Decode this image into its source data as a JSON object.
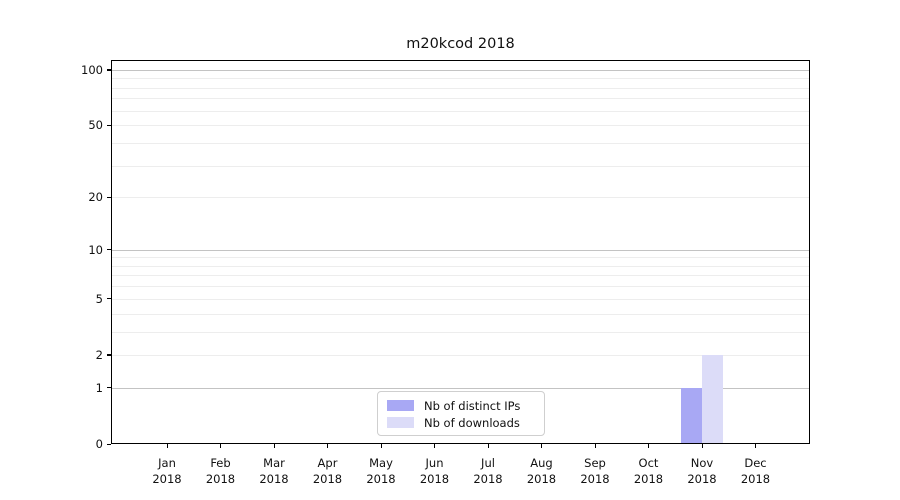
{
  "chart_data": {
    "type": "bar",
    "title": "m20kcod 2018",
    "categories": [
      "Jan",
      "Feb",
      "Mar",
      "Apr",
      "May",
      "Jun",
      "Jul",
      "Aug",
      "Sep",
      "Oct",
      "Nov",
      "Dec"
    ],
    "x_tick_year": "2018",
    "series": [
      {
        "name": "Nb of distinct IPs",
        "color": "#a8a8f4",
        "values": [
          0,
          0,
          0,
          0,
          0,
          0,
          0,
          0,
          0,
          0,
          1,
          0
        ]
      },
      {
        "name": "Nb of downloads",
        "color": "#dcdcf8",
        "values": [
          0,
          0,
          0,
          0,
          0,
          0,
          0,
          0,
          0,
          0,
          2,
          0
        ]
      }
    ],
    "xlabel": "",
    "ylabel": "",
    "yscale": "log(value+1)",
    "ylim": [
      0,
      113
    ],
    "y_tick_values": [
      0,
      1,
      2,
      5,
      10,
      20,
      50,
      100
    ],
    "y_tick_labels": [
      "0",
      "1",
      "2",
      "5",
      "10",
      "20",
      "50",
      "100"
    ],
    "y_major_gridlines": [
      1,
      10,
      100
    ],
    "y_minor_gridlines": [
      2,
      3,
      4,
      5,
      6,
      7,
      8,
      9,
      20,
      30,
      40,
      50,
      60,
      70,
      80,
      90
    ],
    "grid": "horizontal",
    "legend": {
      "position": "lower center inside plot",
      "entries": [
        "Nb of distinct IPs",
        "Nb of downloads"
      ]
    },
    "colors": {
      "distinct_ips_bar": "#a8a8f4",
      "downloads_bar": "#dcdcf8",
      "major_gridline": "#c3c3c3",
      "minor_gridline": "#ededed",
      "axis_frame": "#000000",
      "background": "#ffffff"
    }
  }
}
